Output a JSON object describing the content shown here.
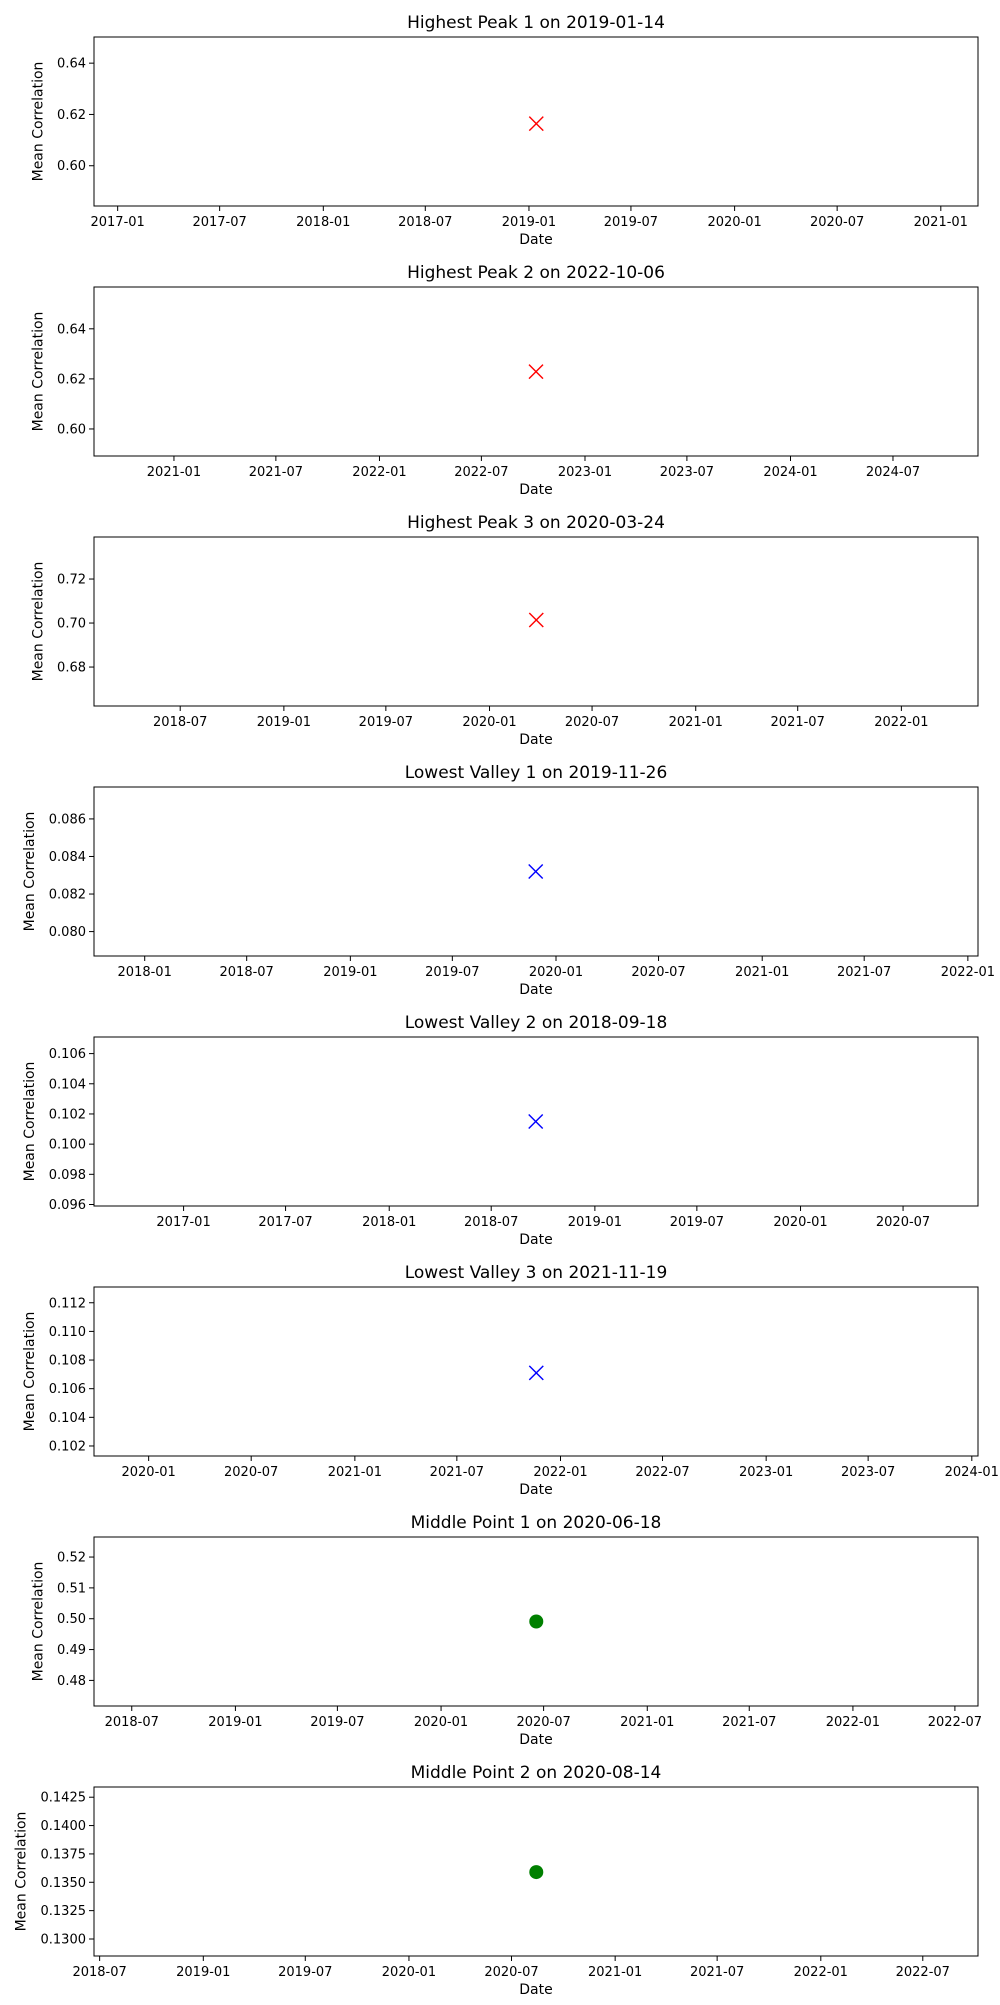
{
  "chart_data": [
    {
      "type": "scatter",
      "title": "Highest Peak 1 on 2019-01-14",
      "xlabel": "Date",
      "ylabel": "Mean Correlation",
      "marker": "x",
      "color": "#ff0000",
      "points": [
        {
          "x": "2019-01-14",
          "y": 0.6164
        }
      ],
      "xlim": [
        "2016-11-20",
        "2021-03-08"
      ],
      "ylim": [
        0.5843,
        0.6502
      ],
      "xticks": [
        "2017-01",
        "2017-07",
        "2018-01",
        "2018-07",
        "2019-01",
        "2019-07",
        "2020-01",
        "2020-07",
        "2021-01"
      ],
      "yticks": [
        "0.60",
        "0.62",
        "0.64"
      ],
      "grid": false
    },
    {
      "type": "scatter",
      "title": "Highest Peak 2 on 2022-10-06",
      "xlabel": "Date",
      "ylabel": "Mean Correlation",
      "marker": "x",
      "color": "#ff0000",
      "points": [
        {
          "x": "2022-10-06",
          "y": 0.6229
        }
      ],
      "xlim": [
        "2020-08-12",
        "2024-11-29"
      ],
      "ylim": [
        0.5892,
        0.6567
      ],
      "xticks": [
        "2021-01",
        "2021-07",
        "2022-01",
        "2022-07",
        "2023-01",
        "2023-07",
        "2024-01",
        "2024-07"
      ],
      "yticks": [
        "0.60",
        "0.62",
        "0.64"
      ],
      "grid": false
    },
    {
      "type": "scatter",
      "title": "Highest Peak 3 on 2020-03-24",
      "xlabel": "Date",
      "ylabel": "Mean Correlation",
      "marker": "x",
      "color": "#ff0000",
      "points": [
        {
          "x": "2020-03-24",
          "y": 0.7014
        }
      ],
      "xlim": [
        "2018-01-29",
        "2022-05-17"
      ],
      "ylim": [
        0.6623,
        0.7391
      ],
      "xticks": [
        "2018-07",
        "2019-01",
        "2019-07",
        "2020-01",
        "2020-07",
        "2021-01",
        "2021-07",
        "2022-01"
      ],
      "yticks": [
        "0.68",
        "0.70",
        "0.72"
      ],
      "grid": false
    },
    {
      "type": "scatter",
      "title": "Lowest Valley 1 on 2019-11-26",
      "xlabel": "Date",
      "ylabel": "Mean Correlation",
      "marker": "x",
      "color": "#0000ff",
      "points": [
        {
          "x": "2019-11-26",
          "y": 0.0832
        }
      ],
      "xlim": [
        "2017-10-03",
        "2022-01-19"
      ],
      "ylim": [
        0.0787,
        0.0877
      ],
      "xticks": [
        "2018-01",
        "2018-07",
        "2019-01",
        "2019-07",
        "2020-01",
        "2020-07",
        "2021-01",
        "2021-07",
        "2022-01"
      ],
      "yticks": [
        "0.080",
        "0.082",
        "0.084",
        "0.086"
      ],
      "grid": false
    },
    {
      "type": "scatter",
      "title": "Lowest Valley 2 on 2018-09-18",
      "xlabel": "Date",
      "ylabel": "Mean Correlation",
      "marker": "x",
      "color": "#0000ff",
      "points": [
        {
          "x": "2018-09-18",
          "y": 0.1015
        }
      ],
      "xlim": [
        "2016-07-26",
        "2020-11-11"
      ],
      "ylim": [
        0.0959,
        0.1071
      ],
      "xticks": [
        "2017-01",
        "2017-07",
        "2018-01",
        "2018-07",
        "2019-01",
        "2019-07",
        "2020-01",
        "2020-07"
      ],
      "yticks": [
        "0.096",
        "0.098",
        "0.100",
        "0.102",
        "0.104",
        "0.106"
      ],
      "grid": false
    },
    {
      "type": "scatter",
      "title": "Lowest Valley 3 on 2021-11-19",
      "xlabel": "Date",
      "ylabel": "Mean Correlation",
      "marker": "x",
      "color": "#0000ff",
      "points": [
        {
          "x": "2021-11-19",
          "y": 0.1071
        }
      ],
      "xlim": [
        "2019-09-26",
        "2024-01-12"
      ],
      "ylim": [
        0.1013,
        0.1131
      ],
      "xticks": [
        "2020-01",
        "2020-07",
        "2021-01",
        "2021-07",
        "2022-01",
        "2022-07",
        "2023-01",
        "2023-07",
        "2024-01"
      ],
      "yticks": [
        "0.102",
        "0.104",
        "0.106",
        "0.108",
        "0.110",
        "0.112"
      ],
      "grid": false
    },
    {
      "type": "scatter",
      "title": "Middle Point 1 on 2020-06-18",
      "xlabel": "Date",
      "ylabel": "Mean Correlation",
      "marker": "o",
      "color": "#008000",
      "points": [
        {
          "x": "2020-06-18",
          "y": 0.4991
        }
      ],
      "xlim": [
        "2018-04-25",
        "2022-08-11"
      ],
      "ylim": [
        0.4717,
        0.5265
      ],
      "xticks": [
        "2018-07",
        "2019-01",
        "2019-07",
        "2020-01",
        "2020-07",
        "2021-01",
        "2021-07",
        "2022-01",
        "2022-07"
      ],
      "yticks": [
        "0.48",
        "0.49",
        "0.50",
        "0.51",
        "0.52"
      ],
      "grid": false
    },
    {
      "type": "scatter",
      "title": "Middle Point 2 on 2020-08-14",
      "xlabel": "Date",
      "ylabel": "Mean Correlation",
      "marker": "o",
      "color": "#008000",
      "points": [
        {
          "x": "2020-08-14",
          "y": 0.1359
        }
      ],
      "xlim": [
        "2018-06-21",
        "2022-10-07"
      ],
      "ylim": [
        0.1285,
        0.1434
      ],
      "xticks": [
        "2018-07",
        "2019-01",
        "2019-07",
        "2020-01",
        "2020-07",
        "2021-01",
        "2021-07",
        "2022-01",
        "2022-07"
      ],
      "yticks": [
        "0.1300",
        "0.1325",
        "0.1350",
        "0.1375",
        "0.1400",
        "0.1425"
      ],
      "grid": false
    }
  ]
}
